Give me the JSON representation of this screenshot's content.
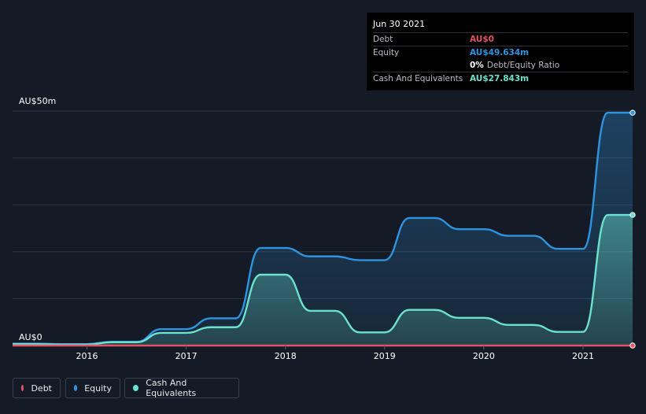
{
  "tooltip": {
    "date": "Jun 30 2021",
    "debt_label": "Debt",
    "debt_value": "AU$0",
    "equity_label": "Equity",
    "equity_value": "AU$49.634m",
    "ratio_value": "0%",
    "ratio_label": "Debt/Equity Ratio",
    "cash_label": "Cash And Equivalents",
    "cash_value": "AU$27.843m"
  },
  "legend": {
    "debt": "Debt",
    "equity": "Equity",
    "cash": "Cash And Equivalents"
  },
  "colors": {
    "background": "#151b26",
    "debt": "#e55263",
    "equity": "#2f94e0",
    "cash": "#6ae2cf",
    "grid": "#2e3440"
  },
  "chart_data": {
    "type": "area",
    "ylim": [
      0,
      50
    ],
    "ytick_labels": [
      "AU$0",
      "AU$50m"
    ],
    "xtick_labels": [
      "2016",
      "2017",
      "2018",
      "2019",
      "2020",
      "2021"
    ],
    "xlim": [
      2015.25,
      2021.5
    ],
    "grid": true,
    "series": [
      {
        "name": "Debt",
        "points": [
          [
            2015.25,
            0
          ],
          [
            2021.5,
            0
          ]
        ]
      },
      {
        "name": "Equity",
        "points": [
          [
            2015.25,
            0.4
          ],
          [
            2015.5,
            0.4
          ],
          [
            2015.75,
            0.3
          ],
          [
            2016.0,
            0.3
          ],
          [
            2016.25,
            0.8
          ],
          [
            2016.5,
            0.8
          ],
          [
            2016.75,
            3.5
          ],
          [
            2017.0,
            3.5
          ],
          [
            2017.25,
            5.8
          ],
          [
            2017.5,
            5.8
          ],
          [
            2017.75,
            20.8
          ],
          [
            2018.0,
            20.8
          ],
          [
            2018.25,
            19.0
          ],
          [
            2018.5,
            19.0
          ],
          [
            2018.75,
            18.2
          ],
          [
            2019.0,
            18.2
          ],
          [
            2019.25,
            27.2
          ],
          [
            2019.5,
            27.2
          ],
          [
            2019.75,
            24.8
          ],
          [
            2020.0,
            24.8
          ],
          [
            2020.25,
            23.4
          ],
          [
            2020.5,
            23.4
          ],
          [
            2020.75,
            20.6
          ],
          [
            2021.0,
            20.6
          ],
          [
            2021.25,
            49.634
          ],
          [
            2021.5,
            49.634
          ]
        ]
      },
      {
        "name": "Cash And Equivalents",
        "points": [
          [
            2015.25,
            0.3
          ],
          [
            2015.5,
            0.3
          ],
          [
            2015.75,
            0.2
          ],
          [
            2016.0,
            0.2
          ],
          [
            2016.25,
            0.7
          ],
          [
            2016.5,
            0.7
          ],
          [
            2016.75,
            2.7
          ],
          [
            2017.0,
            2.7
          ],
          [
            2017.25,
            3.9
          ],
          [
            2017.5,
            3.9
          ],
          [
            2017.75,
            15.1
          ],
          [
            2018.0,
            15.1
          ],
          [
            2018.25,
            7.4
          ],
          [
            2018.5,
            7.4
          ],
          [
            2018.75,
            2.8
          ],
          [
            2019.0,
            2.8
          ],
          [
            2019.25,
            7.6
          ],
          [
            2019.5,
            7.6
          ],
          [
            2019.75,
            5.9
          ],
          [
            2020.0,
            5.9
          ],
          [
            2020.25,
            4.4
          ],
          [
            2020.5,
            4.4
          ],
          [
            2020.75,
            2.9
          ],
          [
            2021.0,
            2.9
          ],
          [
            2021.25,
            27.843
          ],
          [
            2021.5,
            27.843
          ]
        ]
      }
    ]
  }
}
